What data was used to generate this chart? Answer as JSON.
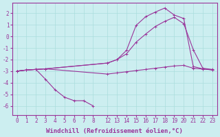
{
  "background_color": "#cceef0",
  "grid_color": "#aadddd",
  "line_color": "#993399",
  "xlabel": "Windchill (Refroidissement éolien,°C)",
  "xlabel_fontsize": 6.5,
  "tick_fontsize": 5.5,
  "ylim": [
    -6.8,
    2.9
  ],
  "yticks": [
    2,
    1,
    0,
    -1,
    -2,
    -3,
    -4,
    -5,
    -6
  ],
  "xticks_left": [
    0,
    1,
    2,
    3,
    4,
    5,
    6,
    7,
    8
  ],
  "xticks_right": [
    12,
    13,
    14,
    15,
    16,
    17,
    18,
    19,
    20,
    21,
    22,
    23
  ],
  "lines": [
    {
      "x": [
        0,
        1,
        2,
        3,
        12,
        13,
        14,
        15,
        16,
        17,
        18,
        19,
        20,
        21,
        22,
        23
      ],
      "y": [
        -3.0,
        -2.9,
        -2.85,
        -2.8,
        -2.3,
        -2.0,
        -1.5,
        -0.5,
        0.2,
        0.85,
        1.3,
        1.65,
        1.1,
        -1.15,
        -2.75,
        -2.85
      ]
    },
    {
      "x": [
        0,
        1,
        2,
        3,
        12,
        13,
        14,
        15,
        16,
        17,
        18,
        19,
        20,
        21,
        22,
        23
      ],
      "y": [
        -3.0,
        -2.9,
        -2.85,
        -2.8,
        -2.3,
        -2.0,
        -1.2,
        0.95,
        1.7,
        2.1,
        2.45,
        1.85,
        1.55,
        -2.6,
        -2.8,
        -2.9
      ]
    },
    {
      "x": [
        0,
        1,
        2,
        3,
        4,
        5,
        6,
        7,
        8
      ],
      "y": [
        -3.0,
        -2.9,
        -2.85,
        -3.7,
        -4.6,
        -5.25,
        -5.55,
        -5.55,
        -6.0
      ]
    },
    {
      "x": [
        0,
        1,
        2,
        3,
        12,
        13,
        14,
        15,
        16,
        17,
        18,
        19,
        20,
        21,
        22,
        23
      ],
      "y": [
        -3.0,
        -2.9,
        -2.85,
        -2.8,
        -3.25,
        -3.15,
        -3.05,
        -2.95,
        -2.85,
        -2.75,
        -2.65,
        -2.55,
        -2.5,
        -2.75,
        -2.82,
        -2.88
      ]
    }
  ]
}
